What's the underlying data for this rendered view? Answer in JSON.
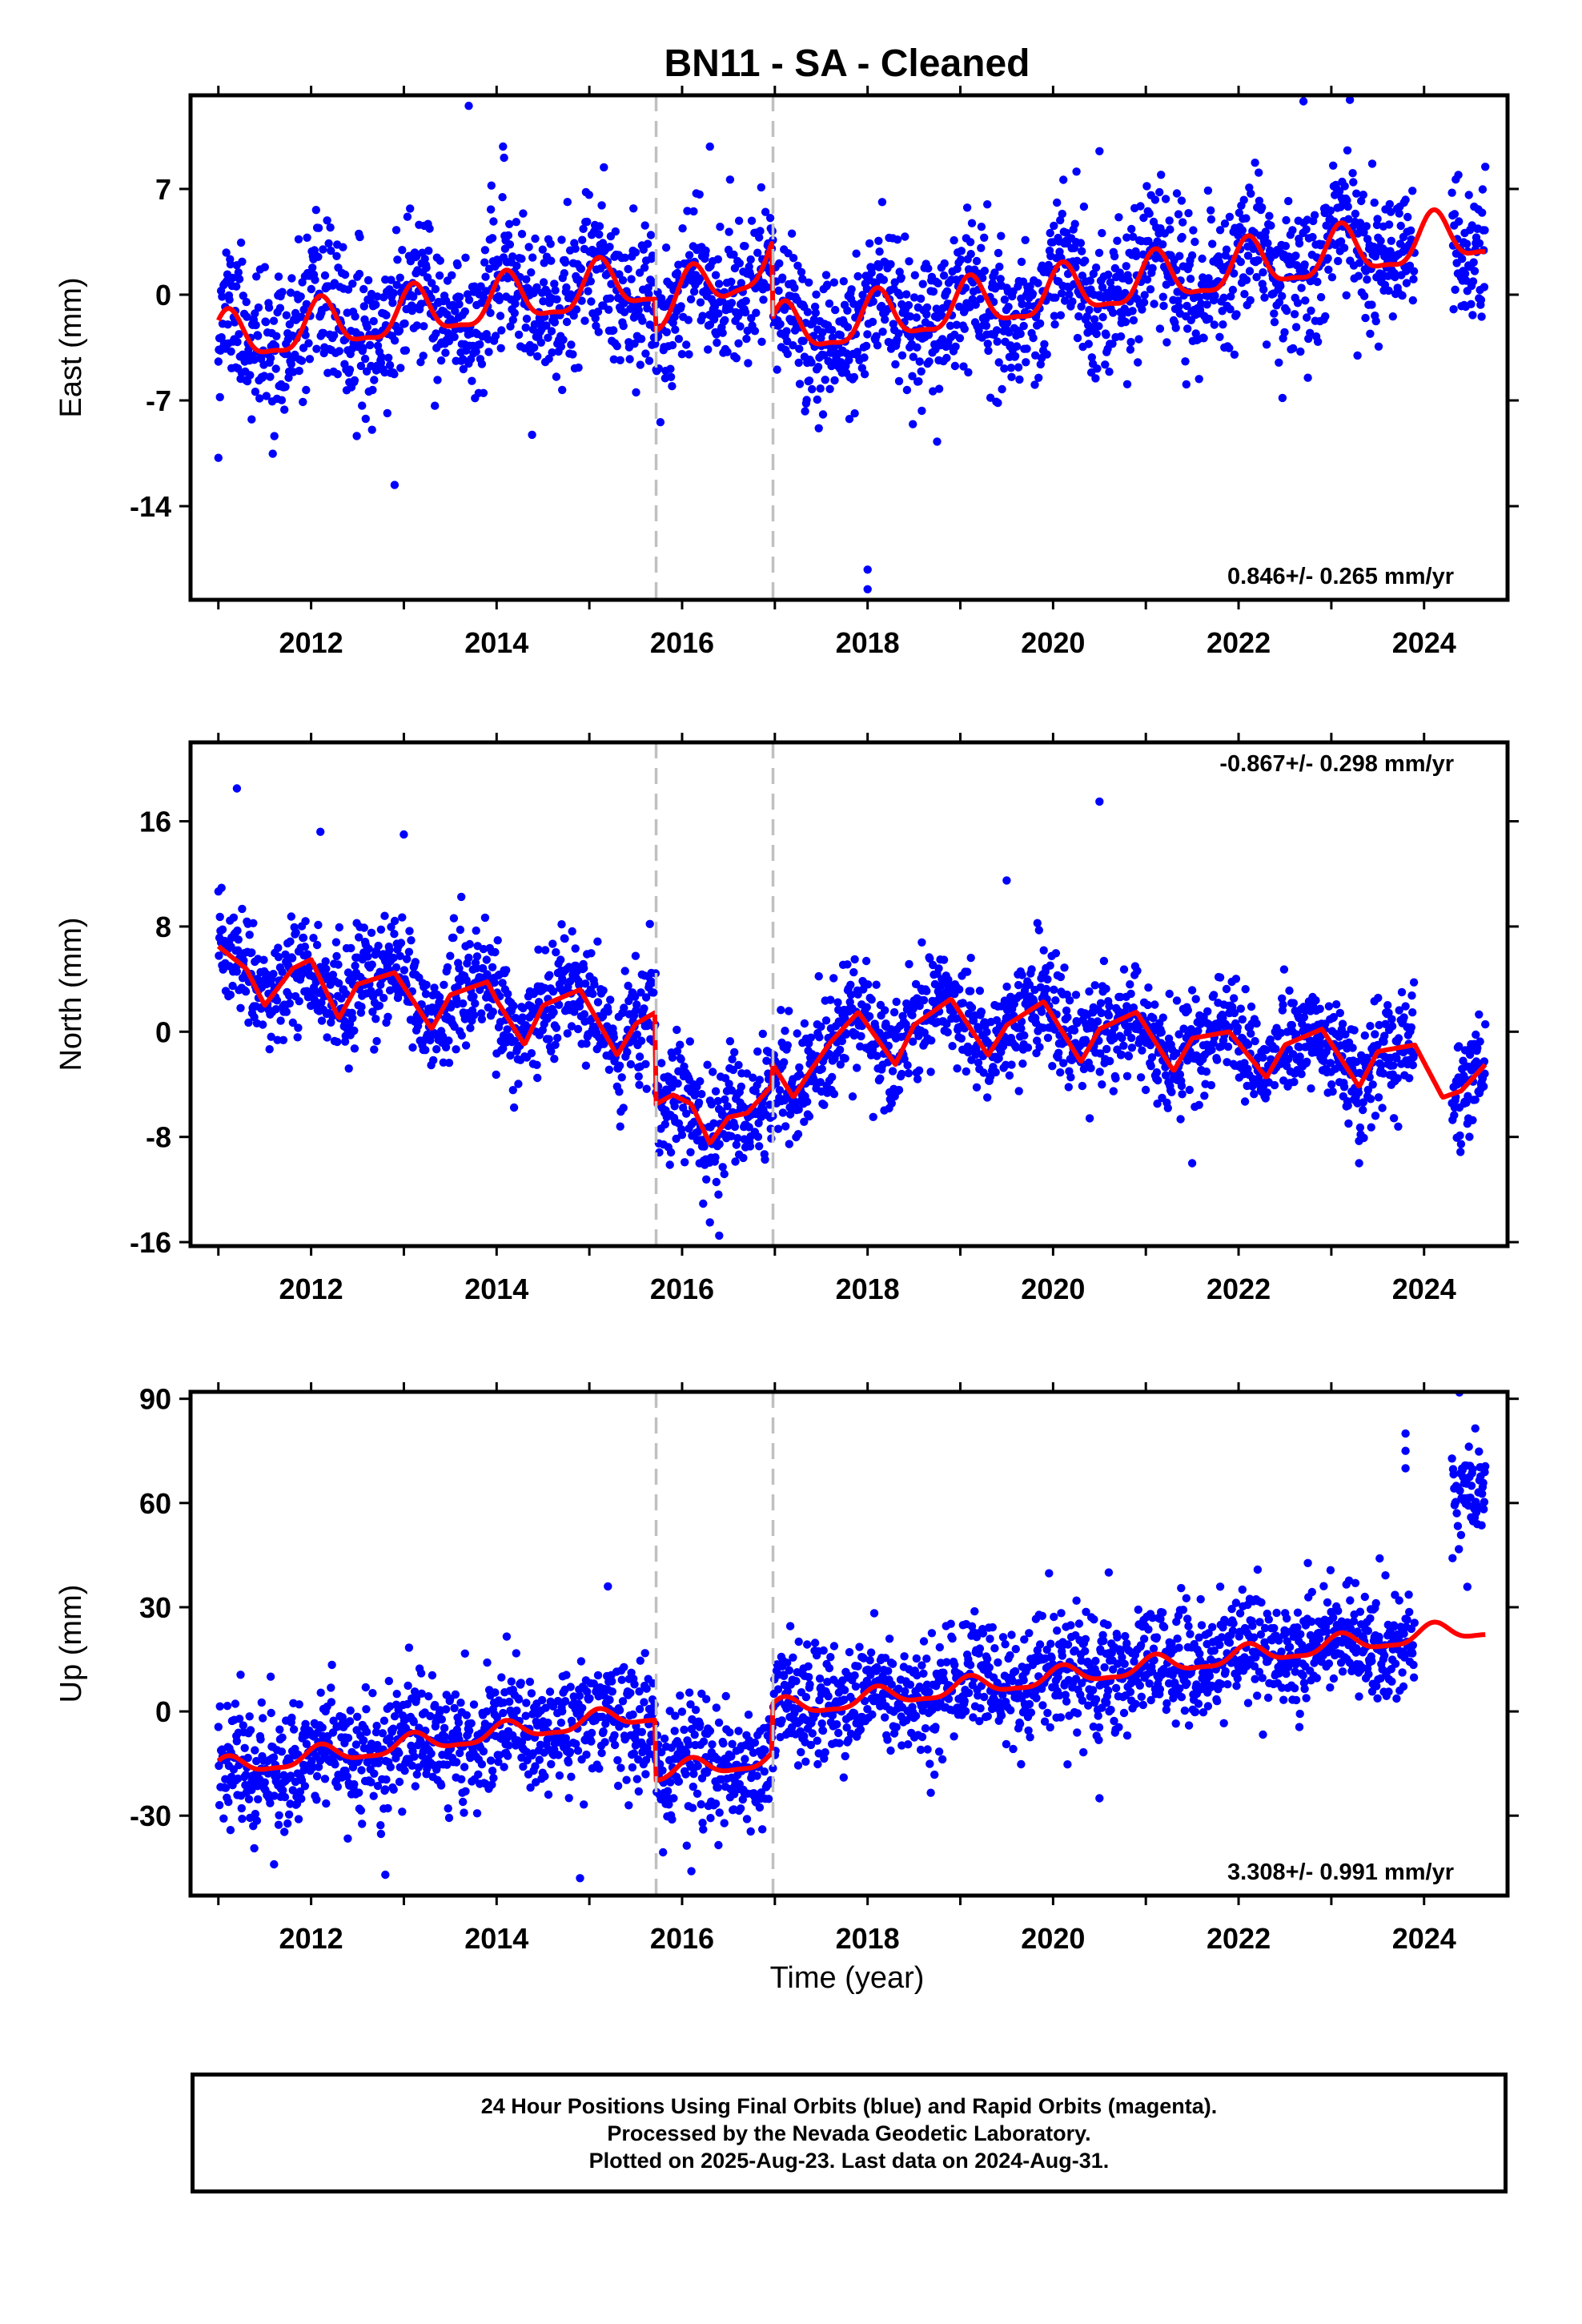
{
  "title": "BN11  - SA - Cleaned",
  "xlabel": "Time (year)",
  "colors": {
    "points": "#0000ff",
    "model": "#ff0000",
    "breaks": "#c0c0c0",
    "frame": "#000000"
  },
  "caption": {
    "line1": "24 Hour Positions Using Final Orbits (blue) and Rapid Orbits (magenta).",
    "line2": "Processed by the Nevada Geodetic Laboratory.",
    "line3": "Plotted on 2025-Aug-23. Last data on 2024-Aug-31."
  },
  "chart_data": [
    {
      "type": "scatter",
      "panel": "east",
      "ylabel": "East (mm)",
      "rate_label": "0.846+/- 0.265 mm/yr",
      "rate_label_placement": "bottom-right",
      "xlim": [
        2010.7,
        2024.9
      ],
      "ylim": [
        -20.2,
        13.2
      ],
      "x_ticks": [
        2012,
        2014,
        2016,
        2018,
        2020,
        2022,
        2024
      ],
      "y_ticks": [
        7,
        0,
        -7,
        -14
      ],
      "y_tick_labels": [
        "7",
        "0",
        "-7",
        "-14"
      ],
      "breaks": [
        2015.72,
        2016.98
      ],
      "data_start": 2011.0,
      "data_end": 2024.66,
      "data_gap": [
        2023.9,
        2024.3
      ],
      "model_series": {
        "name": "",
        "rate": 0.846,
        "seasonal_amplitude": 1.6,
        "semiannual_amplitude": 0.5,
        "x": [
          2011.0,
          2015.72,
          2015.72,
          2016.98,
          2016.98,
          2024.66
        ],
        "offset_path": [
          -3.1,
          0.9,
          -1.2,
          2.5,
          -2.6,
          4.0
        ]
      },
      "scatter_noise_sd": 2.4,
      "outliers": [
        [
          2013.7,
          12.5
        ],
        [
          2016.3,
          9.8
        ],
        [
          2012.9,
          -12.6
        ],
        [
          2018.0,
          -18.2
        ],
        [
          2018.0,
          -19.5
        ],
        [
          2022.7,
          12.8
        ],
        [
          2023.2,
          12.9
        ],
        [
          2020.5,
          9.5
        ],
        [
          2011.0,
          -10.8
        ]
      ]
    },
    {
      "type": "scatter",
      "panel": "north",
      "ylabel": "North (mm)",
      "rate_label": "-0.867+/- 0.298 mm/yr",
      "rate_label_placement": "top-right",
      "xlim": [
        2010.7,
        2024.9
      ],
      "ylim": [
        -16.3,
        22.0
      ],
      "x_ticks": [
        2012,
        2014,
        2016,
        2018,
        2020,
        2022,
        2024
      ],
      "y_ticks": [
        16,
        8,
        0,
        -8,
        -16
      ],
      "y_tick_labels": [
        "16",
        "8",
        "0",
        "-8",
        "-16"
      ],
      "breaks": [
        2015.72,
        2016.98
      ],
      "data_start": 2011.0,
      "data_end": 2024.66,
      "data_gap": [
        2023.9,
        2024.3
      ],
      "model_series": {
        "name": "",
        "x": [
          2011.0,
          2011.3,
          2011.5,
          2011.8,
          2012.0,
          2012.3,
          2012.5,
          2012.9,
          2013.3,
          2013.5,
          2013.9,
          2014.0,
          2014.3,
          2014.5,
          2014.9,
          2015.3,
          2015.5,
          2015.72,
          2015.72,
          2015.9,
          2016.1,
          2016.3,
          2016.5,
          2016.7,
          2016.98,
          2016.98,
          2017.2,
          2017.4,
          2017.6,
          2017.9,
          2018.3,
          2018.5,
          2018.9,
          2019.3,
          2019.5,
          2019.9,
          2020.3,
          2020.5,
          2020.9,
          2021.3,
          2021.5,
          2021.9,
          2022.3,
          2022.5,
          2022.9,
          2023.3,
          2023.5,
          2023.9,
          2024.2,
          2024.4,
          2024.66
        ],
        "values": [
          6.5,
          4.8,
          2.0,
          4.8,
          5.5,
          1.0,
          3.6,
          4.5,
          0.2,
          2.8,
          3.8,
          2.4,
          -1.0,
          2.0,
          3.2,
          -1.8,
          0.6,
          1.5,
          -5.5,
          -4.8,
          -5.5,
          -8.5,
          -6.5,
          -6.2,
          -4.0,
          -2.5,
          -5.0,
          -2.8,
          -0.8,
          1.5,
          -2.5,
          0.5,
          2.5,
          -1.8,
          0.5,
          2.3,
          -2.3,
          0.2,
          1.5,
          -3.0,
          -0.5,
          0.0,
          -3.5,
          -1.0,
          0.2,
          -4.2,
          -1.5,
          -1.0,
          -5.0,
          -4.5,
          -2.5
        ]
      },
      "scatter_noise_sd": 2.1,
      "outliers": [
        [
          2011.2,
          18.5
        ],
        [
          2012.1,
          15.2
        ],
        [
          2013.0,
          15.0
        ],
        [
          2020.5,
          17.5
        ],
        [
          2019.5,
          11.5
        ],
        [
          2016.3,
          -14.5
        ],
        [
          2016.4,
          -15.5
        ],
        [
          2021.5,
          -10.0
        ],
        [
          2023.3,
          -10.0
        ]
      ]
    },
    {
      "type": "scatter",
      "panel": "up",
      "ylabel": "Up (mm)",
      "rate_label": "3.308+/- 0.991 mm/yr",
      "rate_label_placement": "bottom-right",
      "xlim": [
        2010.7,
        2024.9
      ],
      "ylim": [
        -53.0,
        92.0
      ],
      "x_ticks": [
        2012,
        2014,
        2016,
        2018,
        2020,
        2022,
        2024
      ],
      "y_ticks": [
        90,
        60,
        30,
        0,
        -30
      ],
      "y_tick_labels": [
        "90",
        "60",
        "30",
        "0",
        "-30"
      ],
      "breaks": [
        2015.72,
        2016.98
      ],
      "data_start": 2011.0,
      "data_end": 2024.66,
      "data_gap": [
        2023.9,
        2024.3
      ],
      "model_series": {
        "name": "",
        "rate": 3.308,
        "seasonal_amplitude": 2.6,
        "semiannual_amplitude": 0.8,
        "x": [
          2011.0,
          2015.72,
          2015.72,
          2016.98,
          2016.98,
          2024.66
        ],
        "offset_path": [
          -16.5,
          -0.5,
          -18.0,
          -13.5,
          0.5,
          24.0
        ]
      },
      "scatter_noise_sd": 8.5,
      "outliers": [
        [
          2015.2,
          36.0
        ],
        [
          2020.6,
          40.0
        ],
        [
          2012.8,
          -47.0
        ],
        [
          2014.9,
          -48.0
        ],
        [
          2011.6,
          -44.0
        ],
        [
          2016.1,
          -46.0
        ],
        [
          2020.5,
          -25.0
        ],
        [
          2023.8,
          80.0
        ],
        [
          2023.8,
          75.0
        ],
        [
          2023.8,
          70.0
        ]
      ],
      "late_cluster": {
        "x_range": [
          2024.3,
          2024.66
        ],
        "y_center": 65.0,
        "spread": 8.0,
        "peak": 90.0
      }
    }
  ]
}
